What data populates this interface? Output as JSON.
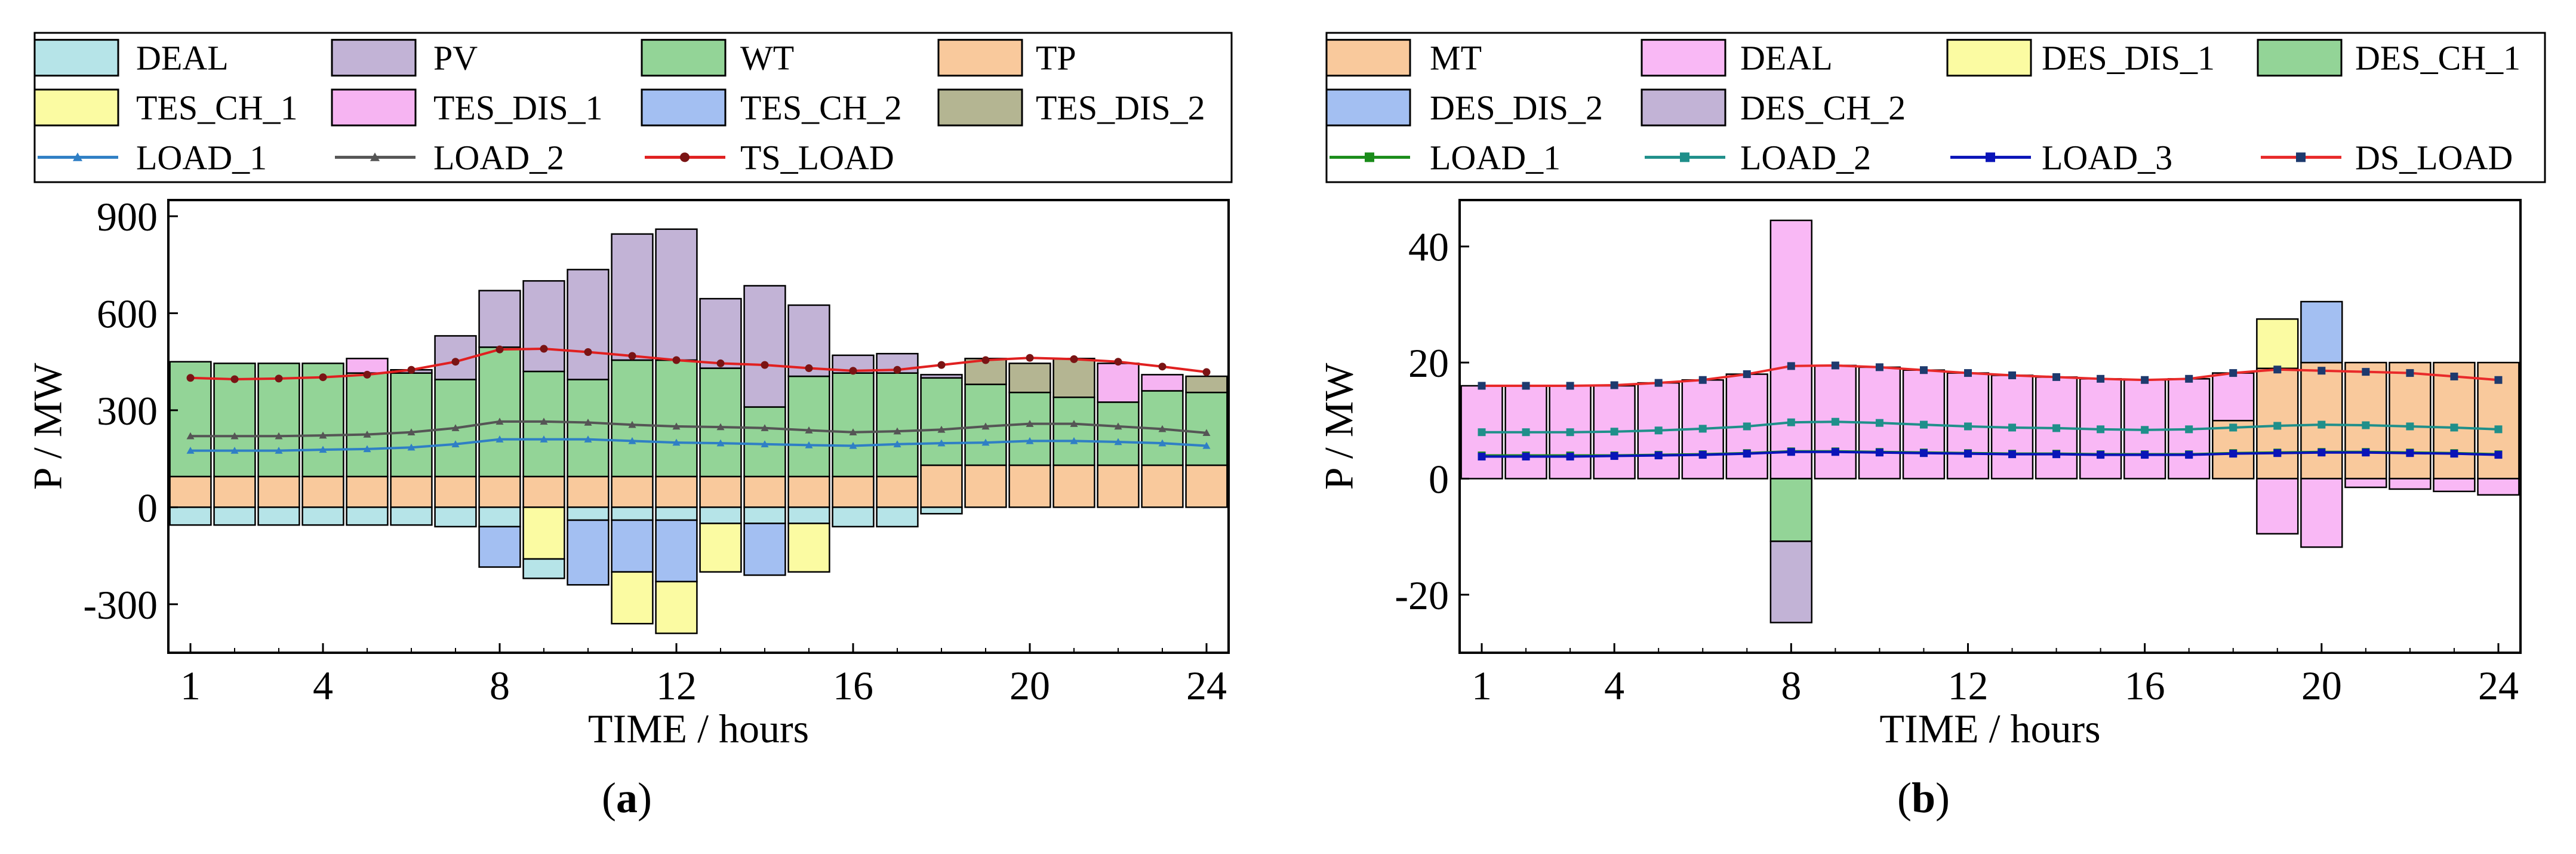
{
  "captions": {
    "a": "a",
    "b": "b"
  },
  "colors": {
    "DEAL_a": "#b6e4e8",
    "PV": "#c2b3d6",
    "WT": "#93d497",
    "TP": "#f9c99c",
    "TES_CH_1": "#fbfba2",
    "TES_DIS_1": "#f6b4f2",
    "TES_CH_2": "#a3bff2",
    "TES_DIS_2": "#b4b592",
    "MT": "#f9c99c",
    "DEAL_b": "#f9b8f5",
    "DES_DIS_1": "#fbfba2",
    "DES_CH_1": "#93d497",
    "DES_DIS_2": "#a3bff2",
    "DES_CH_2": "#c2b3d6",
    "LOAD_1_a": "#2f7fc5",
    "LOAD_2_a": "#555555",
    "TS_LOAD": "#e02020",
    "TS_LOAD_marker": "#7a1414",
    "LOAD_1_b": "#1a8c1a",
    "LOAD_2_b": "#1f8f8a",
    "LOAD_3_b": "#0a14b8",
    "DS_LOAD": "#e82a2a",
    "DS_LOAD_marker": "#1e3a6e"
  },
  "chart_data": [
    {
      "panel": "a",
      "type": "bar",
      "stacked": true,
      "xlabel": "TIME / hours",
      "ylabel": "P / MW",
      "xlim": [
        0.5,
        24.5
      ],
      "ylim": [
        -450,
        950
      ],
      "yticks": [
        -300,
        0,
        300,
        600,
        900
      ],
      "xticks": [
        1,
        4,
        8,
        12,
        16,
        20,
        24
      ],
      "x": [
        1,
        2,
        3,
        4,
        5,
        6,
        7,
        8,
        9,
        10,
        11,
        12,
        13,
        14,
        15,
        16,
        17,
        18,
        19,
        20,
        21,
        22,
        23,
        24
      ],
      "legend": [
        "DEAL",
        "PV",
        "WT",
        "TP",
        "TES_CH_1",
        "TES_DIS_1",
        "TES_CH_2",
        "TES_DIS_2",
        "LOAD_1",
        "LOAD_2",
        "TS_LOAD"
      ],
      "series": [
        {
          "name": "TP",
          "color_key": "TP",
          "values": [
            95,
            95,
            95,
            95,
            95,
            95,
            95,
            95,
            95,
            95,
            95,
            95,
            95,
            95,
            95,
            95,
            95,
            130,
            130,
            130,
            130,
            130,
            130,
            130
          ]
        },
        {
          "name": "WT",
          "color_key": "WT",
          "values": [
            355,
            350,
            350,
            350,
            320,
            320,
            300,
            400,
            325,
            300,
            360,
            360,
            335,
            215,
            310,
            320,
            320,
            270,
            250,
            225,
            210,
            195,
            230,
            225
          ]
        },
        {
          "name": "PV",
          "color_key": "PV",
          "values": [
            0,
            0,
            0,
            0,
            0,
            10,
            135,
            175,
            280,
            340,
            390,
            405,
            215,
            375,
            220,
            55,
            60,
            10,
            0,
            0,
            0,
            0,
            0,
            0
          ]
        },
        {
          "name": "TES_DIS_1",
          "color_key": "TES_DIS_1",
          "values": [
            0,
            0,
            0,
            0,
            45,
            0,
            0,
            0,
            0,
            0,
            0,
            0,
            0,
            0,
            0,
            0,
            0,
            0,
            0,
            0,
            0,
            120,
            50,
            0
          ]
        },
        {
          "name": "TES_DIS_2",
          "color_key": "TES_DIS_2",
          "values": [
            0,
            0,
            0,
            0,
            0,
            0,
            0,
            0,
            0,
            0,
            0,
            0,
            0,
            0,
            0,
            0,
            0,
            0,
            80,
            90,
            120,
            0,
            0,
            50
          ]
        },
        {
          "name": "DEAL_pos",
          "color_key": "DEAL_a",
          "values": [
            0,
            0,
            0,
            0,
            0,
            0,
            0,
            0,
            0,
            0,
            0,
            0,
            0,
            0,
            0,
            0,
            0,
            0,
            0,
            0,
            0,
            0,
            0,
            0
          ]
        },
        {
          "name": "DEAL_neg",
          "color_key": "DEAL_a",
          "values": [
            -55,
            -55,
            -55,
            -55,
            -55,
            -55,
            -60,
            -60,
            0,
            -40,
            -40,
            -40,
            -50,
            -50,
            -50,
            -60,
            -60,
            -20,
            0,
            0,
            0,
            0,
            0,
            0
          ]
        },
        {
          "name": "TES_CH_2",
          "color_key": "TES_CH_2",
          "values": [
            0,
            0,
            0,
            0,
            0,
            0,
            0,
            -125,
            0,
            -200,
            -160,
            -190,
            0,
            -160,
            0,
            0,
            0,
            0,
            0,
            0,
            0,
            0,
            0,
            0
          ]
        },
        {
          "name": "TES_CH_1",
          "color_key": "TES_CH_1",
          "values": [
            0,
            0,
            0,
            0,
            0,
            0,
            0,
            0,
            -160,
            0,
            -160,
            -160,
            -150,
            0,
            -150,
            0,
            0,
            0,
            0,
            0,
            0,
            0,
            0,
            0
          ]
        },
        {
          "name": "DEAL_neg2",
          "color_key": "DEAL_a",
          "values": [
            0,
            0,
            0,
            0,
            0,
            0,
            0,
            0,
            -60,
            0,
            0,
            0,
            0,
            0,
            0,
            0,
            0,
            0,
            0,
            0,
            0,
            0,
            0,
            0
          ]
        }
      ],
      "lines": [
        {
          "name": "LOAD_1",
          "color_key": "LOAD_1_a",
          "marker": "triangle",
          "values": [
            175,
            175,
            175,
            178,
            180,
            185,
            195,
            210,
            210,
            210,
            205,
            200,
            198,
            195,
            192,
            190,
            195,
            198,
            200,
            205,
            205,
            202,
            198,
            190
          ]
        },
        {
          "name": "LOAD_2",
          "color_key": "LOAD_2_a",
          "marker": "triangle",
          "values": [
            220,
            220,
            220,
            222,
            225,
            232,
            245,
            265,
            265,
            262,
            255,
            250,
            248,
            245,
            238,
            232,
            235,
            240,
            250,
            258,
            258,
            250,
            242,
            230
          ]
        },
        {
          "name": "TS_LOAD",
          "color_key": "TS_LOAD",
          "marker": "circle",
          "values": [
            400,
            396,
            398,
            402,
            410,
            425,
            450,
            488,
            490,
            480,
            468,
            455,
            445,
            440,
            430,
            422,
            425,
            440,
            455,
            462,
            458,
            450,
            435,
            418
          ]
        }
      ]
    },
    {
      "panel": "b",
      "type": "bar",
      "stacked": true,
      "xlabel": "TIME / hours",
      "ylabel": "P / MW",
      "xlim": [
        0.5,
        24.5
      ],
      "ylim": [
        -30,
        48
      ],
      "yticks": [
        -20,
        0,
        20,
        40
      ],
      "xticks": [
        1,
        4,
        8,
        12,
        16,
        20,
        24
      ],
      "x": [
        1,
        2,
        3,
        4,
        5,
        6,
        7,
        8,
        9,
        10,
        11,
        12,
        13,
        14,
        15,
        16,
        17,
        18,
        19,
        20,
        21,
        22,
        23,
        24
      ],
      "legend": [
        "MT",
        "DEAL",
        "DES_DIS_1",
        "DES_CH_1",
        "DES_DIS_2",
        "DES_CH_2",
        "LOAD_1",
        "LOAD_2",
        "LOAD_3",
        "DS_LOAD"
      ],
      "series": [
        {
          "name": "MT",
          "color_key": "MT",
          "values": [
            0,
            0,
            0,
            0,
            0,
            0,
            0,
            0,
            0,
            0,
            0,
            0,
            0,
            0,
            0,
            0,
            0,
            10,
            19,
            20,
            20,
            20,
            20,
            20
          ]
        },
        {
          "name": "DEAL_pos",
          "color_key": "DEAL_b",
          "values": [
            16,
            16,
            16,
            16,
            16.5,
            17,
            18,
            44.5,
            19.5,
            19.2,
            18.7,
            18.2,
            17.8,
            17.5,
            17.2,
            17,
            17.2,
            8.2,
            0,
            0,
            0,
            0,
            0,
            0
          ]
        },
        {
          "name": "DES_DIS_1",
          "color_key": "DES_DIS_1",
          "values": [
            0,
            0,
            0,
            0,
            0,
            0,
            0,
            0,
            0,
            0,
            0,
            0,
            0,
            0,
            0,
            0,
            0,
            0,
            8.5,
            0,
            0,
            0,
            0,
            0
          ]
        },
        {
          "name": "DES_DIS_2",
          "color_key": "DES_DIS_2",
          "values": [
            0,
            0,
            0,
            0,
            0,
            0,
            0,
            0,
            0,
            0,
            0,
            0,
            0,
            0,
            0,
            0,
            0,
            0,
            0,
            10.5,
            0,
            0,
            0,
            0
          ]
        },
        {
          "name": "DEAL_neg",
          "color_key": "DEAL_b",
          "values": [
            0,
            0,
            0,
            0,
            0,
            0,
            0,
            0,
            0,
            0,
            0,
            0,
            0,
            0,
            0,
            0,
            0,
            0,
            -9.5,
            -11.8,
            -1.5,
            -1.8,
            -2.2,
            -2.8
          ]
        },
        {
          "name": "DES_CH_1",
          "color_key": "DES_CH_1",
          "values": [
            0,
            0,
            0,
            0,
            0,
            0,
            0,
            -10.8,
            0,
            0,
            0,
            0,
            0,
            0,
            0,
            0,
            0,
            0,
            0,
            0,
            0,
            0,
            0,
            0
          ]
        },
        {
          "name": "DES_CH_2",
          "color_key": "DES_CH_2",
          "values": [
            0,
            0,
            0,
            0,
            0,
            0,
            0,
            -14,
            0,
            0,
            0,
            0,
            0,
            0,
            0,
            0,
            0,
            0,
            0,
            0,
            0,
            0,
            0,
            0
          ]
        }
      ],
      "lines": [
        {
          "name": "LOAD_1",
          "color_key": "LOAD_1_b",
          "marker": "square",
          "values": [
            4,
            4,
            4,
            4,
            4.1,
            4.2,
            4.4,
            4.7,
            4.7,
            4.6,
            4.5,
            4.4,
            4.3,
            4.3,
            4.2,
            4.2,
            4.2,
            4.4,
            4.5,
            4.6,
            4.6,
            4.5,
            4.4,
            4.2
          ]
        },
        {
          "name": "LOAD_2",
          "color_key": "LOAD_2_b",
          "marker": "square",
          "values": [
            8,
            8,
            8,
            8.1,
            8.3,
            8.6,
            9,
            9.7,
            9.8,
            9.6,
            9.3,
            9,
            8.8,
            8.7,
            8.5,
            8.4,
            8.5,
            8.8,
            9.1,
            9.3,
            9.2,
            9,
            8.8,
            8.5
          ]
        },
        {
          "name": "LOAD_3",
          "color_key": "LOAD_3_b",
          "marker": "square",
          "values": [
            3.8,
            3.8,
            3.8,
            3.9,
            4,
            4.1,
            4.3,
            4.6,
            4.6,
            4.5,
            4.4,
            4.3,
            4.2,
            4.2,
            4.1,
            4.1,
            4.1,
            4.3,
            4.4,
            4.5,
            4.5,
            4.4,
            4.3,
            4.1
          ]
        },
        {
          "name": "DS_LOAD",
          "color_key": "DS_LOAD",
          "marker": "square",
          "values": [
            16,
            16,
            16,
            16.1,
            16.5,
            17,
            18,
            19.4,
            19.5,
            19.2,
            18.7,
            18.2,
            17.8,
            17.5,
            17.2,
            17,
            17.2,
            18.2,
            18.8,
            18.6,
            18.4,
            18.2,
            17.6,
            17
          ]
        }
      ]
    }
  ],
  "legend_a": [
    {
      "label": "DEAL",
      "kind": "box",
      "color_key": "DEAL_a"
    },
    {
      "label": "PV",
      "kind": "box",
      "color_key": "PV"
    },
    {
      "label": "WT",
      "kind": "box",
      "color_key": "WT"
    },
    {
      "label": "TP",
      "kind": "box",
      "color_key": "TP"
    },
    {
      "label": "TES_CH_1",
      "kind": "box",
      "color_key": "TES_CH_1"
    },
    {
      "label": "TES_DIS_1",
      "kind": "box",
      "color_key": "TES_DIS_1"
    },
    {
      "label": "TES_CH_2",
      "kind": "box",
      "color_key": "TES_CH_2"
    },
    {
      "label": "TES_DIS_2",
      "kind": "box",
      "color_key": "TES_DIS_2"
    },
    {
      "label": "LOAD_1",
      "kind": "line",
      "color_key": "LOAD_1_a",
      "marker": "triangle"
    },
    {
      "label": "LOAD_2",
      "kind": "line",
      "color_key": "LOAD_2_a",
      "marker": "triangle"
    },
    {
      "label": "TS_LOAD",
      "kind": "line",
      "color_key": "TS_LOAD",
      "marker": "circle"
    }
  ],
  "legend_b": [
    {
      "label": "MT",
      "kind": "box",
      "color_key": "MT"
    },
    {
      "label": "DEAL",
      "kind": "box",
      "color_key": "DEAL_b"
    },
    {
      "label": "DES_DIS_1",
      "kind": "box",
      "color_key": "DES_DIS_1"
    },
    {
      "label": "DES_CH_1",
      "kind": "box",
      "color_key": "DES_CH_1"
    },
    {
      "label": "DES_DIS_2",
      "kind": "box",
      "color_key": "DES_DIS_2"
    },
    {
      "label": "DES_CH_2",
      "kind": "box",
      "color_key": "DES_CH_2"
    },
    {
      "label": "LOAD_1",
      "kind": "line",
      "color_key": "LOAD_1_b",
      "marker": "square"
    },
    {
      "label": "LOAD_2",
      "kind": "line",
      "color_key": "LOAD_2_b",
      "marker": "square"
    },
    {
      "label": "LOAD_3",
      "kind": "line",
      "color_key": "LOAD_3_b",
      "marker": "square"
    },
    {
      "label": "DS_LOAD",
      "kind": "line",
      "color_key": "DS_LOAD",
      "marker": "square"
    }
  ]
}
